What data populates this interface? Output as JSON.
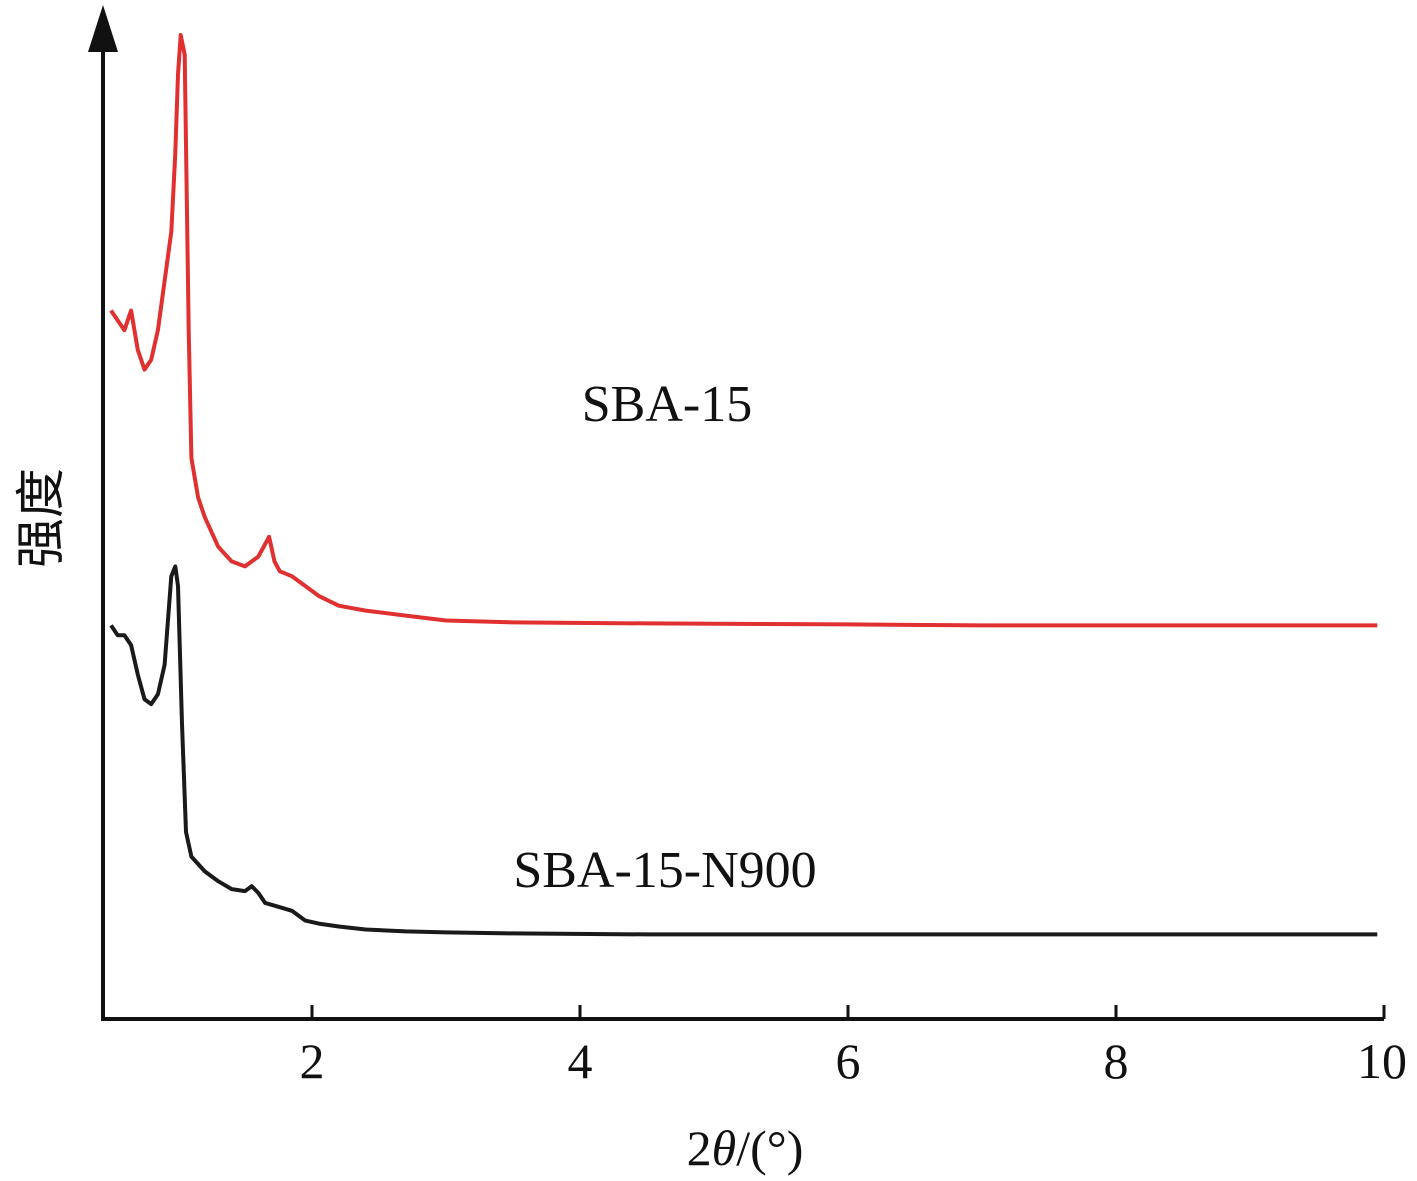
{
  "chart_data": {
    "type": "line",
    "title": "",
    "xlabel_prefix": "2",
    "xlabel_symbol": "θ",
    "xlabel_suffix": "/(°)",
    "ylabel": "强度",
    "xlim": [
      0.45,
      10
    ],
    "x_ticks": [
      2,
      4,
      6,
      8,
      10
    ],
    "y_ticks_shown": false,
    "grid": false,
    "legend": "none",
    "series": [
      {
        "name": "SBA-15",
        "color": "#e03030",
        "points": [
          [
            0.5,
            0.72
          ],
          [
            0.6,
            0.7
          ],
          [
            0.65,
            0.72
          ],
          [
            0.7,
            0.68
          ],
          [
            0.75,
            0.66
          ],
          [
            0.8,
            0.67
          ],
          [
            0.85,
            0.7
          ],
          [
            0.9,
            0.75
          ],
          [
            0.95,
            0.8
          ],
          [
            0.98,
            0.88
          ],
          [
            1.0,
            0.96
          ],
          [
            1.02,
            1.0
          ],
          [
            1.05,
            0.98
          ],
          [
            1.08,
            0.7
          ],
          [
            1.1,
            0.57
          ],
          [
            1.15,
            0.53
          ],
          [
            1.2,
            0.51
          ],
          [
            1.3,
            0.48
          ],
          [
            1.4,
            0.465
          ],
          [
            1.5,
            0.46
          ],
          [
            1.6,
            0.47
          ],
          [
            1.68,
            0.49
          ],
          [
            1.72,
            0.465
          ],
          [
            1.76,
            0.455
          ],
          [
            1.85,
            0.45
          ],
          [
            1.95,
            0.44
          ],
          [
            2.05,
            0.43
          ],
          [
            2.2,
            0.42
          ],
          [
            2.4,
            0.415
          ],
          [
            2.7,
            0.41
          ],
          [
            3.0,
            0.405
          ],
          [
            3.5,
            0.403
          ],
          [
            4.5,
            0.402
          ],
          [
            6.0,
            0.401
          ],
          [
            7.0,
            0.4
          ],
          [
            8.0,
            0.4
          ],
          [
            9.0,
            0.4
          ],
          [
            9.95,
            0.4
          ]
        ]
      },
      {
        "name": "SBA-15-N900",
        "color": "#1a1a1a",
        "points": [
          [
            0.5,
            0.4
          ],
          [
            0.55,
            0.39
          ],
          [
            0.6,
            0.39
          ],
          [
            0.65,
            0.38
          ],
          [
            0.7,
            0.35
          ],
          [
            0.75,
            0.325
          ],
          [
            0.8,
            0.32
          ],
          [
            0.85,
            0.33
          ],
          [
            0.9,
            0.36
          ],
          [
            0.95,
            0.45
          ],
          [
            0.98,
            0.46
          ],
          [
            1.0,
            0.44
          ],
          [
            1.03,
            0.3
          ],
          [
            1.06,
            0.19
          ],
          [
            1.1,
            0.165
          ],
          [
            1.2,
            0.15
          ],
          [
            1.3,
            0.14
          ],
          [
            1.4,
            0.132
          ],
          [
            1.5,
            0.13
          ],
          [
            1.55,
            0.135
          ],
          [
            1.6,
            0.128
          ],
          [
            1.65,
            0.118
          ],
          [
            1.75,
            0.114
          ],
          [
            1.85,
            0.11
          ],
          [
            1.95,
            0.1
          ],
          [
            2.05,
            0.097
          ],
          [
            2.2,
            0.094
          ],
          [
            2.4,
            0.091
          ],
          [
            2.7,
            0.089
          ],
          [
            3.0,
            0.088
          ],
          [
            3.5,
            0.087
          ],
          [
            4.5,
            0.086
          ],
          [
            6.0,
            0.086
          ],
          [
            8.0,
            0.086
          ],
          [
            9.95,
            0.086
          ]
        ]
      }
    ]
  }
}
